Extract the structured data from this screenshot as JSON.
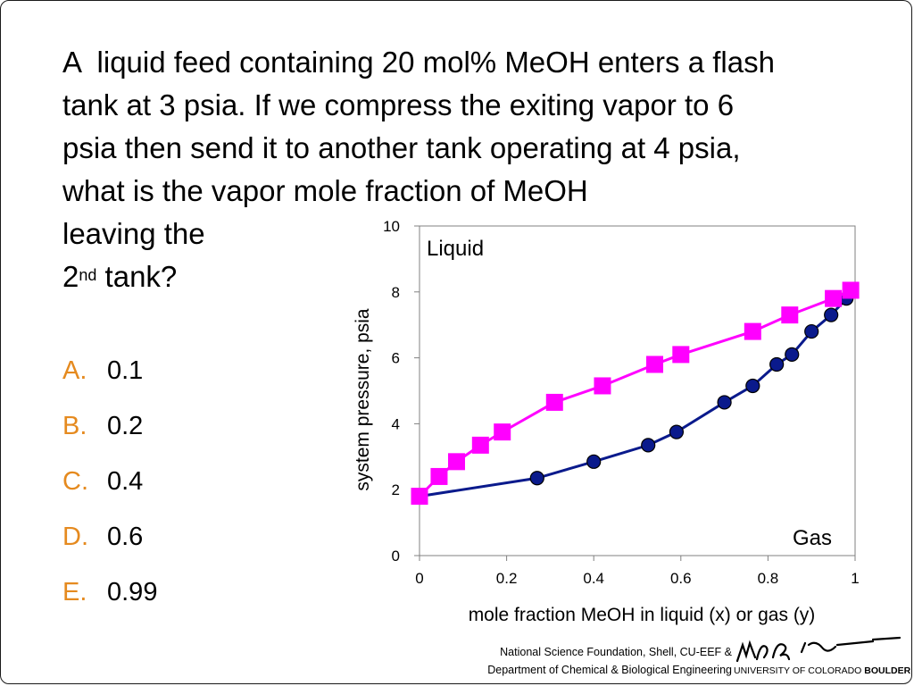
{
  "question": {
    "lines": [
      "A  liquid feed containing 20 mol% MeOH enters a flash",
      "tank at 3 psia. If we compress the exiting vapor to 6",
      "psia then send it to another tank operating at 4 psia,",
      "what is the vapor mole fraction of MeOH",
      "leaving the"
    ],
    "last_line_prefix": "2",
    "last_line_sup": "nd",
    "last_line_suffix": " tank?"
  },
  "answers": [
    {
      "letter": "A.",
      "value": "0.1"
    },
    {
      "letter": "B.",
      "value": "0.2"
    },
    {
      "letter": "C.",
      "value": "0.4"
    },
    {
      "letter": "D.",
      "value": "0.6"
    },
    {
      "letter": "E.",
      "value": "0.99"
    }
  ],
  "colors": {
    "answer_letter": "#e58a1f",
    "liquid_series": "#ff00ff",
    "gas_series": "#0a1a8c"
  },
  "chart_data": {
    "type": "line",
    "xlabel": "mole fraction MeOH in liquid (x) or gas (y)",
    "ylabel": "system pressure, psia",
    "xlim": [
      0,
      1
    ],
    "ylim": [
      0,
      10
    ],
    "x_ticks": [
      "0",
      "0.2",
      "0.4",
      "0.6",
      "0.8",
      "1"
    ],
    "y_ticks": [
      "0",
      "2",
      "4",
      "6",
      "8",
      "10"
    ],
    "annotations": [
      "Liquid",
      "Gas"
    ],
    "grid": false,
    "series": [
      {
        "marker": "square",
        "x": [
          0,
          0.045,
          0.085,
          0.14,
          0.19,
          0.31,
          0.42,
          0.54,
          0.6,
          0.765,
          0.85,
          0.95,
          0.99
        ],
        "y": [
          1.8,
          2.4,
          2.85,
          3.35,
          3.75,
          4.65,
          5.15,
          5.8,
          6.1,
          6.8,
          7.3,
          7.8,
          8.05
        ]
      },
      {
        "marker": "circle",
        "x": [
          0,
          0.27,
          0.4,
          0.525,
          0.59,
          0.7,
          0.765,
          0.82,
          0.855,
          0.9,
          0.945,
          0.98
        ],
        "y": [
          1.8,
          2.35,
          2.85,
          3.35,
          3.75,
          4.65,
          5.15,
          5.8,
          6.1,
          6.8,
          7.3,
          7.8
        ]
      }
    ]
  },
  "credits": {
    "line1": "National Science Foundation, Shell, CU-EEF &",
    "line2": "Department of Chemical & Biological Engineering",
    "univ_regular": "UNIVERSITY OF COLORADO ",
    "univ_bold": "BOULDER"
  }
}
